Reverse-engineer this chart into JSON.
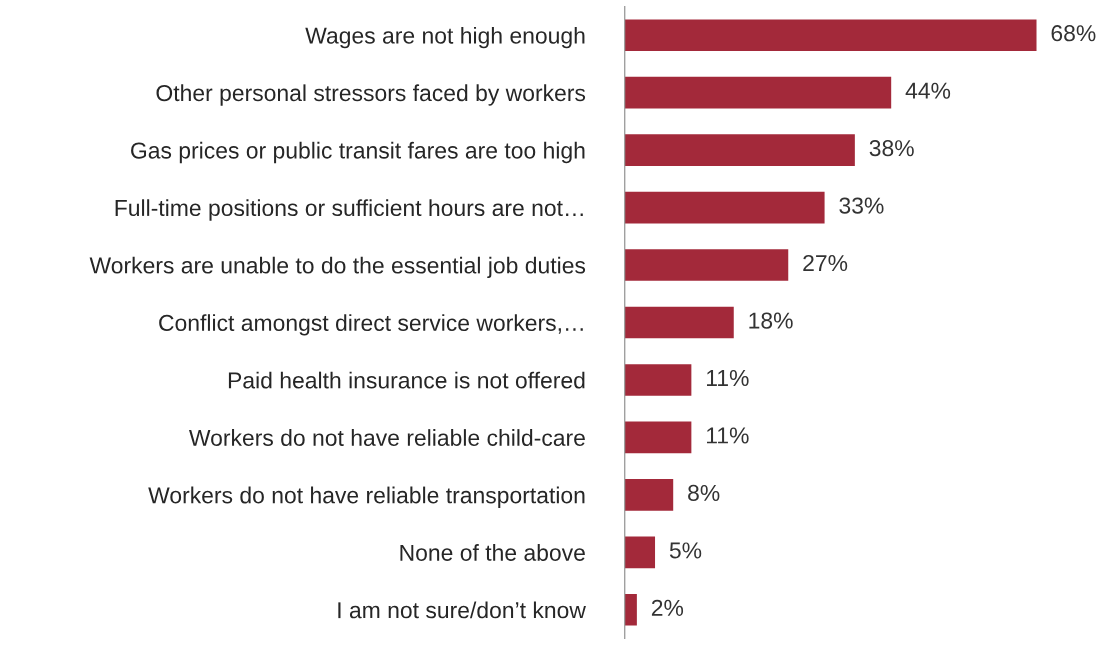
{
  "chart_data": {
    "type": "bar",
    "orientation": "horizontal",
    "categories": [
      "Wages are not high enough",
      "Other personal stressors faced by workers",
      "Gas prices or public transit fares are too high",
      "Full-time positions or sufficient hours are not…",
      "Workers are unable to do the essential job duties",
      "Conflict amongst direct service workers,…",
      "Paid health insurance is not offered",
      "Workers do not have reliable child-care",
      "Workers do not have reliable transportation",
      "None of the above",
      "I am not sure/don’t know"
    ],
    "values": [
      68,
      44,
      38,
      33,
      27,
      18,
      11,
      11,
      8,
      5,
      2
    ],
    "value_labels": [
      "68%",
      "44%",
      "38%",
      "33%",
      "27%",
      "18%",
      "11%",
      "11%",
      "8%",
      "5%",
      "2%"
    ],
    "color": "#a3293a",
    "grid": false,
    "legend": false
  }
}
